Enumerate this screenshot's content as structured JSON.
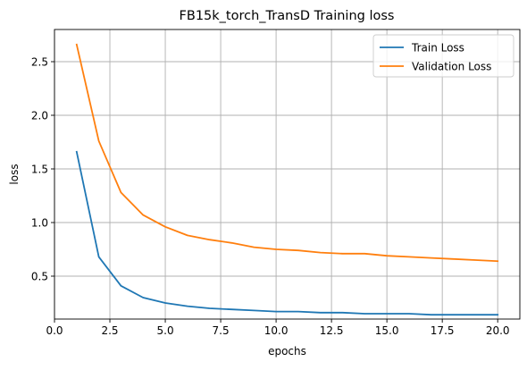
{
  "chart_data": {
    "type": "line",
    "title": "FB15k_torch_TransD Training loss",
    "xlabel": "epochs",
    "ylabel": "loss",
    "xlim": [
      0.0,
      21.0
    ],
    "ylim": [
      0.1,
      2.8
    ],
    "xticks": [
      0.0,
      2.5,
      5.0,
      7.5,
      10.0,
      12.5,
      15.0,
      17.5,
      20.0
    ],
    "xtick_labels": [
      "0.0",
      "2.5",
      "5.0",
      "7.5",
      "10.0",
      "12.5",
      "15.0",
      "17.5",
      "20.0"
    ],
    "yticks": [
      0.5,
      1.0,
      1.5,
      2.0,
      2.5
    ],
    "ytick_labels": [
      "0.5",
      "1.0",
      "1.5",
      "2.0",
      "2.5"
    ],
    "grid": true,
    "legend_position": "top-right",
    "x": [
      1,
      2,
      3,
      4,
      5,
      6,
      7,
      8,
      9,
      10,
      11,
      12,
      13,
      14,
      15,
      16,
      17,
      18,
      19,
      20
    ],
    "series": [
      {
        "name": "Train Loss",
        "color": "#1f77b4",
        "values": [
          1.66,
          0.68,
          0.41,
          0.3,
          0.25,
          0.22,
          0.2,
          0.19,
          0.18,
          0.17,
          0.17,
          0.16,
          0.16,
          0.15,
          0.15,
          0.15,
          0.14,
          0.14,
          0.14,
          0.14
        ]
      },
      {
        "name": "Validation Loss",
        "color": "#ff7f0e",
        "values": [
          2.66,
          1.76,
          1.28,
          1.07,
          0.96,
          0.88,
          0.84,
          0.81,
          0.77,
          0.75,
          0.74,
          0.72,
          0.71,
          0.71,
          0.69,
          0.68,
          0.67,
          0.66,
          0.65,
          0.64
        ]
      }
    ]
  }
}
